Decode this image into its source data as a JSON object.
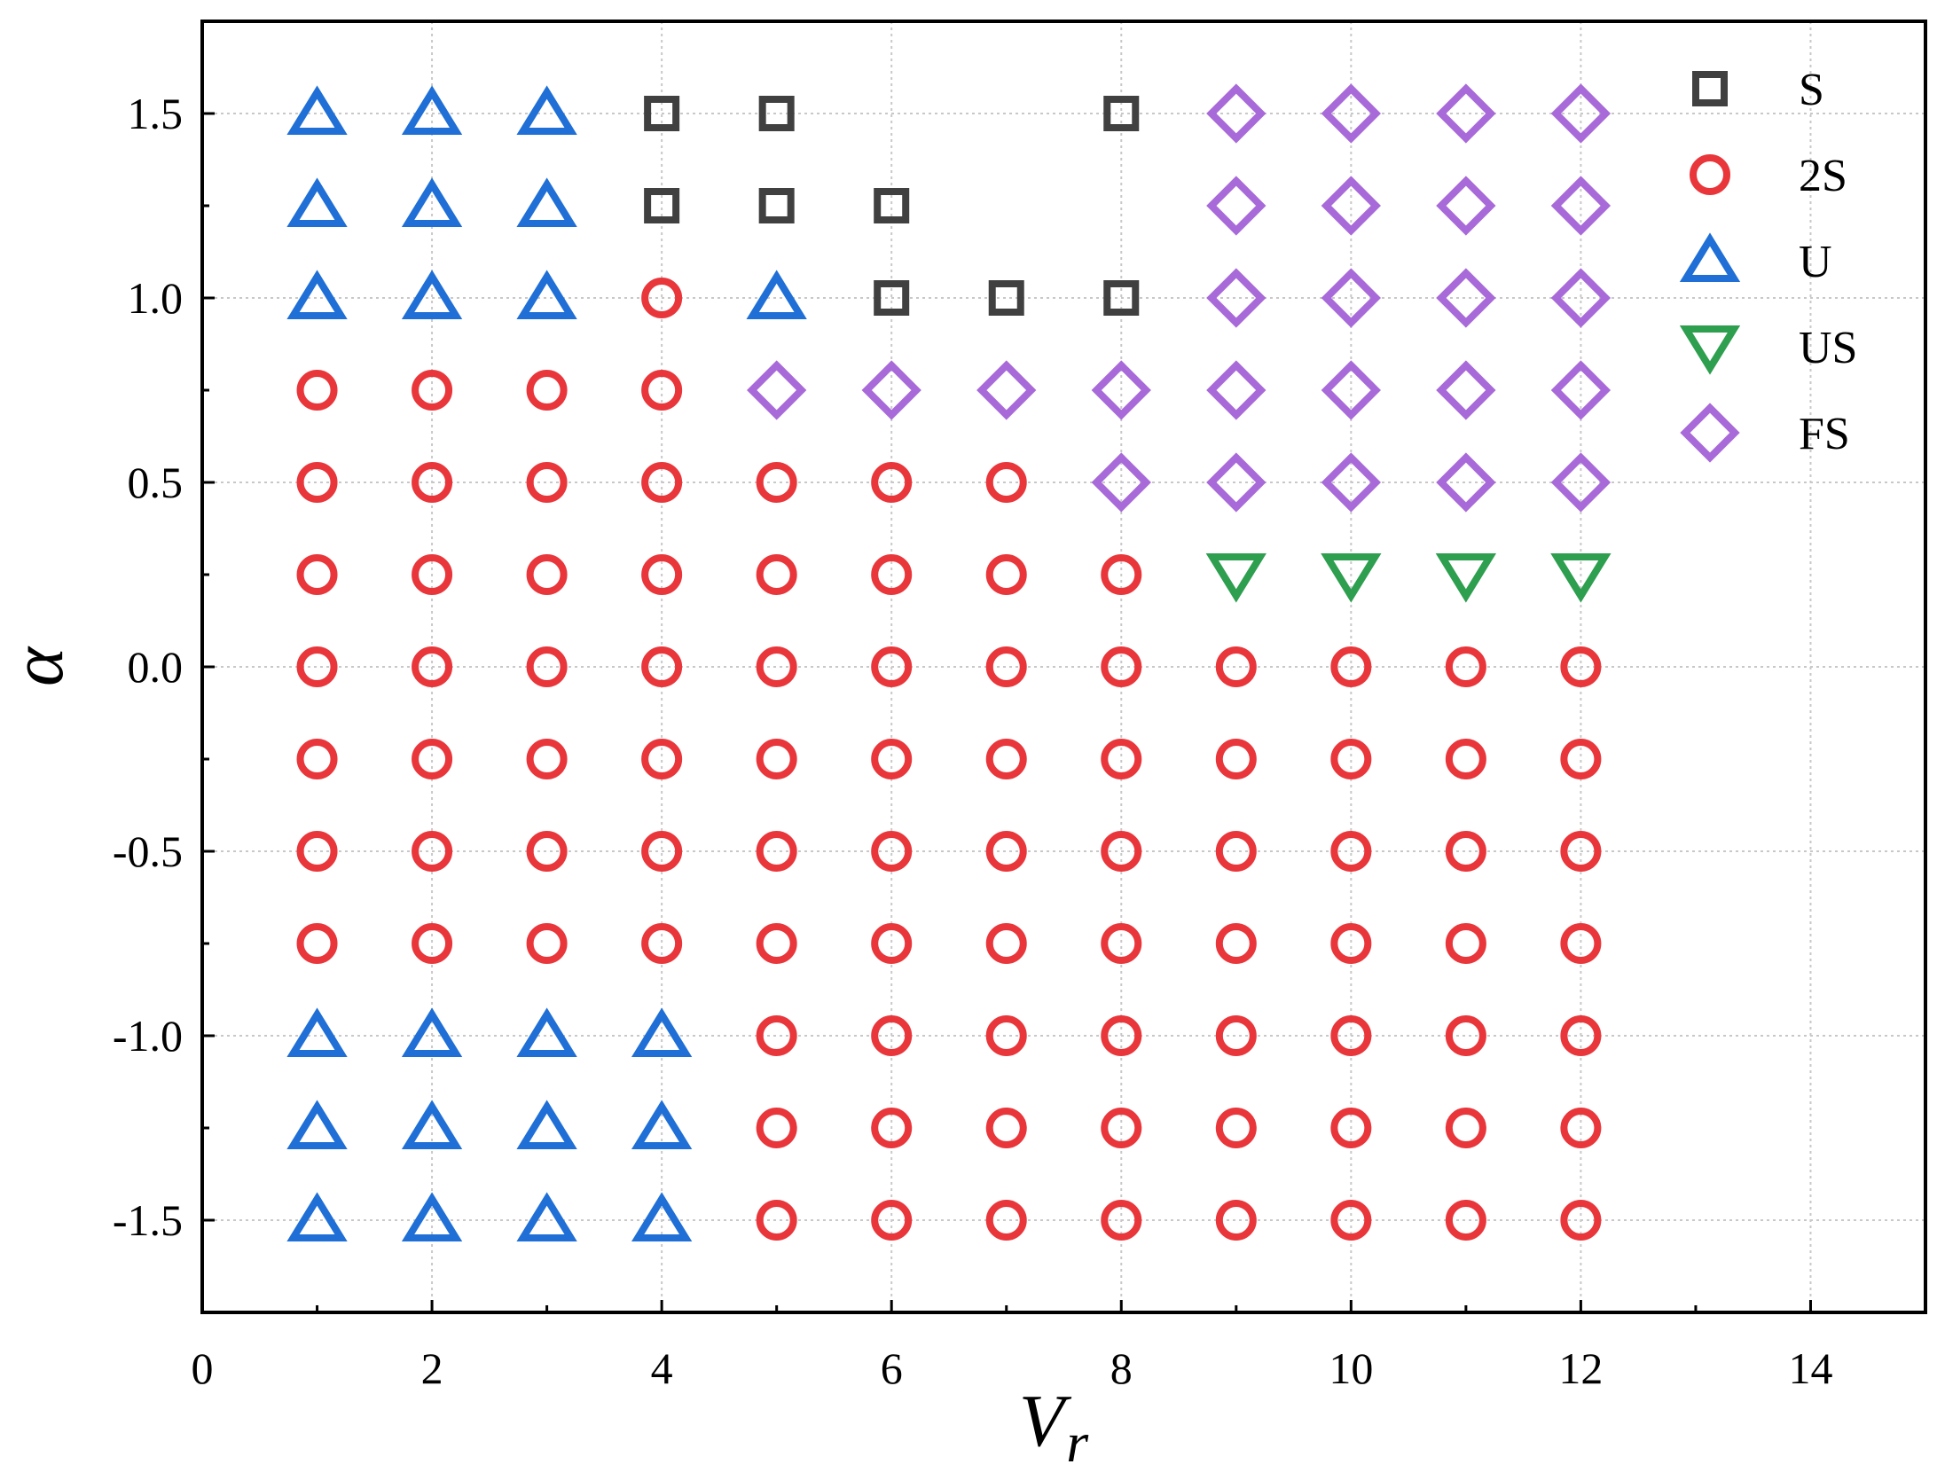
{
  "chart_data": {
    "type": "scatter",
    "title": "",
    "xlabel": "V",
    "xlabel_sub": "r",
    "ylabel": "α",
    "xlim": [
      0,
      15
    ],
    "ylim": [
      -1.75,
      1.75
    ],
    "x_ticks": [
      0,
      2,
      4,
      6,
      8,
      10,
      12,
      14
    ],
    "x_tick_labels": [
      "0",
      "2",
      "4",
      "6",
      "8",
      "10",
      "12",
      "14"
    ],
    "y_ticks": [
      -1.5,
      -1.0,
      -0.5,
      0.0,
      0.5,
      1.0,
      1.5
    ],
    "y_tick_labels": [
      "-1.5",
      "-1.0",
      "-0.5",
      "0.0",
      "0.5",
      "1.0",
      "1.5"
    ],
    "grid": true,
    "legend_position": "top-right",
    "series": [
      {
        "name": "S",
        "marker": "square",
        "color": "#404040",
        "points": [
          [
            4,
            1.5
          ],
          [
            5,
            1.5
          ],
          [
            8,
            1.5
          ],
          [
            4,
            1.25
          ],
          [
            5,
            1.25
          ],
          [
            6,
            1.25
          ],
          [
            6,
            1.0
          ],
          [
            7,
            1.0
          ],
          [
            8,
            1.0
          ]
        ]
      },
      {
        "name": "2S",
        "marker": "circle",
        "color": "#e8363b",
        "points": [
          [
            4,
            1.0
          ],
          [
            1,
            0.75
          ],
          [
            2,
            0.75
          ],
          [
            3,
            0.75
          ],
          [
            4,
            0.75
          ],
          [
            1,
            0.5
          ],
          [
            2,
            0.5
          ],
          [
            3,
            0.5
          ],
          [
            4,
            0.5
          ],
          [
            5,
            0.5
          ],
          [
            6,
            0.5
          ],
          [
            7,
            0.5
          ],
          [
            1,
            0.25
          ],
          [
            2,
            0.25
          ],
          [
            3,
            0.25
          ],
          [
            4,
            0.25
          ],
          [
            5,
            0.25
          ],
          [
            6,
            0.25
          ],
          [
            7,
            0.25
          ],
          [
            8,
            0.25
          ],
          [
            1,
            0.0
          ],
          [
            2,
            0.0
          ],
          [
            3,
            0.0
          ],
          [
            4,
            0.0
          ],
          [
            5,
            0.0
          ],
          [
            6,
            0.0
          ],
          [
            7,
            0.0
          ],
          [
            8,
            0.0
          ],
          [
            9,
            0.0
          ],
          [
            10,
            0.0
          ],
          [
            11,
            0.0
          ],
          [
            12,
            0.0
          ],
          [
            1,
            -0.25
          ],
          [
            2,
            -0.25
          ],
          [
            3,
            -0.25
          ],
          [
            4,
            -0.25
          ],
          [
            5,
            -0.25
          ],
          [
            6,
            -0.25
          ],
          [
            7,
            -0.25
          ],
          [
            8,
            -0.25
          ],
          [
            9,
            -0.25
          ],
          [
            10,
            -0.25
          ],
          [
            11,
            -0.25
          ],
          [
            12,
            -0.25
          ],
          [
            1,
            -0.5
          ],
          [
            2,
            -0.5
          ],
          [
            3,
            -0.5
          ],
          [
            4,
            -0.5
          ],
          [
            5,
            -0.5
          ],
          [
            6,
            -0.5
          ],
          [
            7,
            -0.5
          ],
          [
            8,
            -0.5
          ],
          [
            9,
            -0.5
          ],
          [
            10,
            -0.5
          ],
          [
            11,
            -0.5
          ],
          [
            12,
            -0.5
          ],
          [
            1,
            -0.75
          ],
          [
            2,
            -0.75
          ],
          [
            3,
            -0.75
          ],
          [
            4,
            -0.75
          ],
          [
            5,
            -0.75
          ],
          [
            6,
            -0.75
          ],
          [
            7,
            -0.75
          ],
          [
            8,
            -0.75
          ],
          [
            9,
            -0.75
          ],
          [
            10,
            -0.75
          ],
          [
            11,
            -0.75
          ],
          [
            12,
            -0.75
          ],
          [
            5,
            -1.0
          ],
          [
            6,
            -1.0
          ],
          [
            7,
            -1.0
          ],
          [
            8,
            -1.0
          ],
          [
            9,
            -1.0
          ],
          [
            10,
            -1.0
          ],
          [
            11,
            -1.0
          ],
          [
            12,
            -1.0
          ],
          [
            5,
            -1.25
          ],
          [
            6,
            -1.25
          ],
          [
            7,
            -1.25
          ],
          [
            8,
            -1.25
          ],
          [
            9,
            -1.25
          ],
          [
            10,
            -1.25
          ],
          [
            11,
            -1.25
          ],
          [
            12,
            -1.25
          ],
          [
            5,
            -1.5
          ],
          [
            6,
            -1.5
          ],
          [
            7,
            -1.5
          ],
          [
            8,
            -1.5
          ],
          [
            9,
            -1.5
          ],
          [
            10,
            -1.5
          ],
          [
            11,
            -1.5
          ],
          [
            12,
            -1.5
          ]
        ]
      },
      {
        "name": "U",
        "marker": "triangle-up",
        "color": "#1f6fd6",
        "points": [
          [
            1,
            1.5
          ],
          [
            2,
            1.5
          ],
          [
            3,
            1.5
          ],
          [
            1,
            1.25
          ],
          [
            2,
            1.25
          ],
          [
            3,
            1.25
          ],
          [
            1,
            1.0
          ],
          [
            2,
            1.0
          ],
          [
            3,
            1.0
          ],
          [
            5,
            1.0
          ],
          [
            1,
            -1.0
          ],
          [
            2,
            -1.0
          ],
          [
            3,
            -1.0
          ],
          [
            4,
            -1.0
          ],
          [
            1,
            -1.25
          ],
          [
            2,
            -1.25
          ],
          [
            3,
            -1.25
          ],
          [
            4,
            -1.25
          ],
          [
            1,
            -1.5
          ],
          [
            2,
            -1.5
          ],
          [
            3,
            -1.5
          ],
          [
            4,
            -1.5
          ]
        ]
      },
      {
        "name": "US",
        "marker": "triangle-down",
        "color": "#2e9e4f",
        "points": [
          [
            9,
            0.25
          ],
          [
            10,
            0.25
          ],
          [
            11,
            0.25
          ],
          [
            12,
            0.25
          ]
        ]
      },
      {
        "name": "FS",
        "marker": "diamond",
        "color": "#a86ad8",
        "points": [
          [
            9,
            1.5
          ],
          [
            10,
            1.5
          ],
          [
            11,
            1.5
          ],
          [
            12,
            1.5
          ],
          [
            9,
            1.25
          ],
          [
            10,
            1.25
          ],
          [
            11,
            1.25
          ],
          [
            12,
            1.25
          ],
          [
            9,
            1.0
          ],
          [
            10,
            1.0
          ],
          [
            11,
            1.0
          ],
          [
            12,
            1.0
          ],
          [
            5,
            0.75
          ],
          [
            6,
            0.75
          ],
          [
            7,
            0.75
          ],
          [
            8,
            0.75
          ],
          [
            9,
            0.75
          ],
          [
            10,
            0.75
          ],
          [
            11,
            0.75
          ],
          [
            12,
            0.75
          ],
          [
            8,
            0.5
          ],
          [
            9,
            0.5
          ],
          [
            10,
            0.5
          ],
          [
            11,
            0.5
          ],
          [
            12,
            0.5
          ]
        ]
      }
    ]
  }
}
